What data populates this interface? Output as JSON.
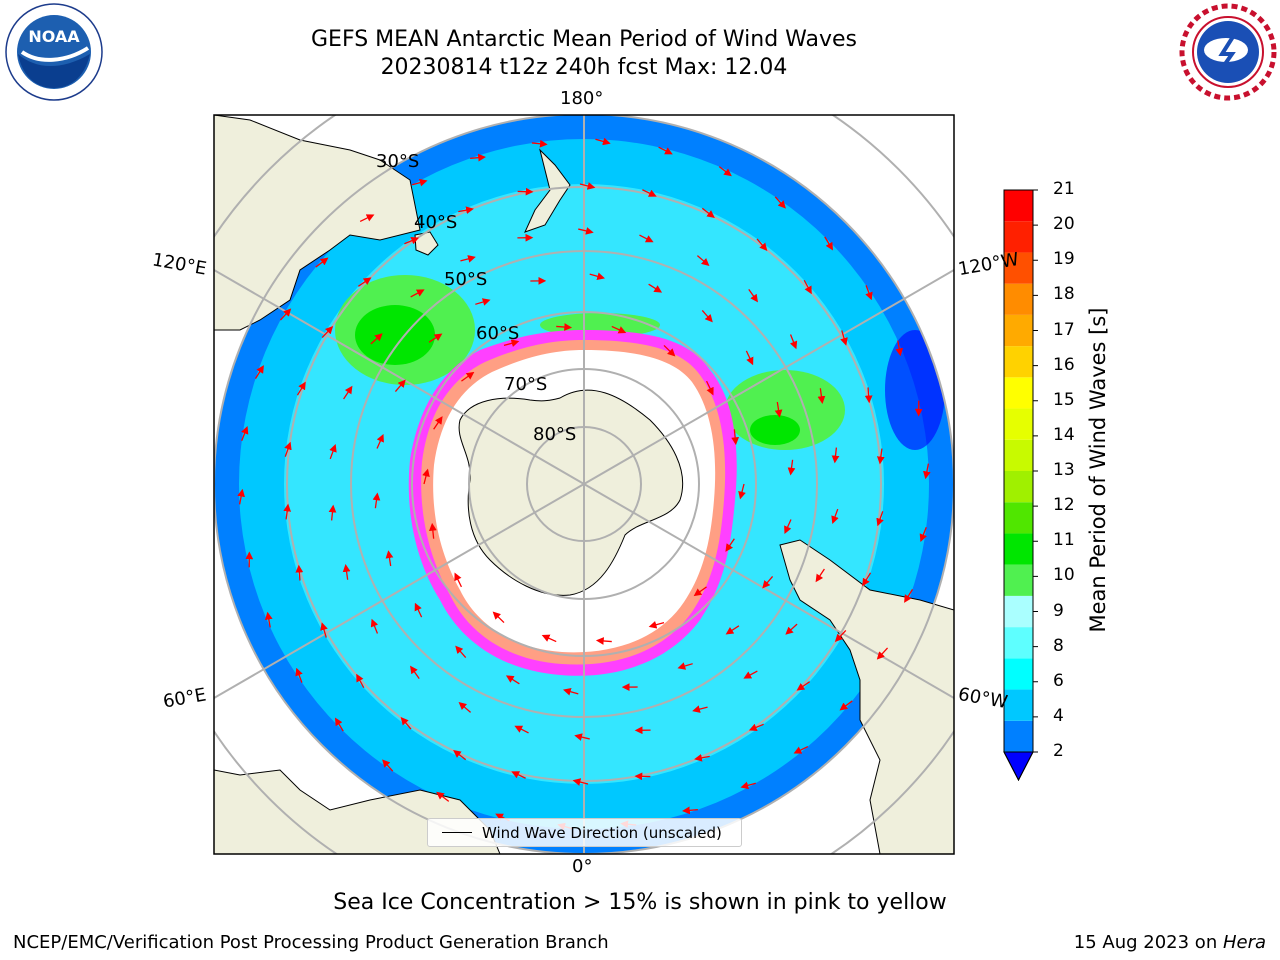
{
  "title_line1": "GEFS MEAN Antarctic Mean Period of Wind Waves",
  "title_line2": "20230814 t12z 240h fcst   Max: 12.04",
  "longitude_labels": {
    "top": "180°",
    "bottom": "0°",
    "upper_left": "120°E",
    "upper_right": "120°W",
    "lower_left": "60°E",
    "lower_right": "60°W"
  },
  "latitude_labels": [
    "30°S",
    "40°S",
    "50°S",
    "60°S",
    "70°S",
    "80°S"
  ],
  "legend_label": "Wind Wave Direction (unscaled)",
  "colorbar": {
    "label": "Mean Period of Wind Waves [s]",
    "ticks": [
      "2",
      "4",
      "6",
      "8",
      "9",
      "10",
      "11",
      "12",
      "13",
      "14",
      "15",
      "16",
      "17",
      "18",
      "19",
      "20",
      "21"
    ],
    "colors": [
      "#0080ff",
      "#00c8ff",
      "#00ffff",
      "#5effff",
      "#aaffff",
      "#50f050",
      "#00e600",
      "#50e600",
      "#a0f000",
      "#c8fa00",
      "#e6ff00",
      "#ffff00",
      "#ffd200",
      "#ffaa00",
      "#ff8c00",
      "#ff5000",
      "#ff2000",
      "#ff0000"
    ],
    "extend_color": "#0000ff"
  },
  "footnote": "Sea Ice Concentration > 15% is shown in pink to yellow",
  "credit_left": "NCEP/EMC/Verification Post Processing Product Generation Branch",
  "credit_right_date": "15 Aug 2023 on ",
  "credit_right_machine": "Hera",
  "logos": {
    "noaa_text": "NOAA",
    "noaa_ring_text": "NATIONAL OCEANIC AND ATMOSPHERIC ADMINISTRATION · U.S. DEPARTMENT OF COMMERCE",
    "nws_ring_text": "NATIONAL WEATHER SERVICE"
  },
  "map_colors": {
    "ocean_low": "#0080ff",
    "ocean_mid": "#00c8ff",
    "ocean_high": "#5effff",
    "wave_green": "#00e600",
    "land": "#efefdc",
    "sea_ice_pink": "#ff40ff",
    "sea_ice_yellow": "#ffc850",
    "arrow": "#ff0000",
    "grid": "#b0b0b0"
  }
}
